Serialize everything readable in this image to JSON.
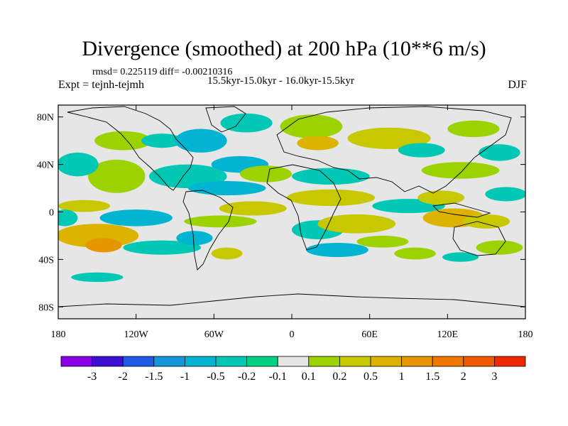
{
  "title": "Divergence (smoothed) at 200 hPa (10**6 m/s)",
  "stats": "rmsd= 0.225119 diff= -0.00210316",
  "experiment": "Expt = tejnh-tejmh",
  "period": "15.5kyr-15.0kyr - 16.0kyr-15.5kyr",
  "season": "DJF",
  "chart_data": {
    "type": "heatmap",
    "title": "Divergence (smoothed) at 200 hPa (10**6 m/s)",
    "xlabel": "",
    "ylabel": "",
    "xlim": [
      -180,
      180
    ],
    "ylim": [
      -90,
      90
    ],
    "x_ticks": [
      {
        "value": -180,
        "label": "180"
      },
      {
        "value": -120,
        "label": "120W"
      },
      {
        "value": -60,
        "label": "60W"
      },
      {
        "value": 0,
        "label": "0"
      },
      {
        "value": 60,
        "label": "60E"
      },
      {
        "value": 120,
        "label": "120E"
      },
      {
        "value": 180,
        "label": "180"
      }
    ],
    "y_ticks": [
      {
        "value": 80,
        "label": "80N"
      },
      {
        "value": 40,
        "label": "40N"
      },
      {
        "value": 0,
        "label": "0"
      },
      {
        "value": -40,
        "label": "40S"
      },
      {
        "value": -80,
        "label": "80S"
      }
    ],
    "colorbar": {
      "levels": [
        -3,
        -2,
        -1.5,
        -1,
        -0.5,
        -0.2,
        -0.1,
        0.1,
        0.2,
        0.5,
        1,
        1.5,
        2,
        3
      ],
      "labels": [
        "-3",
        "-2",
        "-1.5",
        "-1",
        "-0.5",
        "-0.2",
        "-0.1",
        "0.1",
        "0.2",
        "0.5",
        "1",
        "1.5",
        "2",
        "3"
      ],
      "colors": [
        "#8A00E6",
        "#3C0FD2",
        "#1E5AE6",
        "#1496DC",
        "#00B4D2",
        "#00C8B4",
        "#00D282",
        "#E6E6E6",
        "#9BD200",
        "#C8C800",
        "#DCB400",
        "#E69600",
        "#F07800",
        "#F05A00",
        "#F02800"
      ]
    },
    "blobs": [
      {
        "lon": -150,
        "lat": -20,
        "rx": 32,
        "ry": 10,
        "level": "1"
      },
      {
        "lon": -145,
        "lat": -28,
        "rx": 14,
        "ry": 6,
        "level": "1.5"
      },
      {
        "lon": -120,
        "lat": -5,
        "rx": 28,
        "ry": 7,
        "level": "-0.5"
      },
      {
        "lon": -160,
        "lat": 5,
        "rx": 20,
        "ry": 5,
        "level": "0.5"
      },
      {
        "lon": -100,
        "lat": -30,
        "rx": 30,
        "ry": 6,
        "level": "-0.2"
      },
      {
        "lon": -135,
        "lat": 30,
        "rx": 22,
        "ry": 14,
        "level": "0.2"
      },
      {
        "lon": -165,
        "lat": 40,
        "rx": 16,
        "ry": 10,
        "level": "-0.2"
      },
      {
        "lon": -130,
        "lat": 60,
        "rx": 22,
        "ry": 8,
        "level": "0.2"
      },
      {
        "lon": -100,
        "lat": 60,
        "rx": 16,
        "ry": 6,
        "level": "-0.2"
      },
      {
        "lon": -70,
        "lat": 60,
        "rx": 20,
        "ry": 10,
        "level": "-0.5"
      },
      {
        "lon": -35,
        "lat": 75,
        "rx": 20,
        "ry": 8,
        "level": "-0.2"
      },
      {
        "lon": 15,
        "lat": 72,
        "rx": 24,
        "ry": 10,
        "level": "0.2"
      },
      {
        "lon": 20,
        "lat": 58,
        "rx": 16,
        "ry": 6,
        "level": "1"
      },
      {
        "lon": 75,
        "lat": 62,
        "rx": 32,
        "ry": 9,
        "level": "0.5"
      },
      {
        "lon": 100,
        "lat": 52,
        "rx": 18,
        "ry": 6,
        "level": "-0.2"
      },
      {
        "lon": 140,
        "lat": 70,
        "rx": 20,
        "ry": 7,
        "level": "0.2"
      },
      {
        "lon": 160,
        "lat": 50,
        "rx": 16,
        "ry": 7,
        "level": "-0.2"
      },
      {
        "lon": 130,
        "lat": 35,
        "rx": 30,
        "ry": 7,
        "level": "0.2"
      },
      {
        "lon": -80,
        "lat": 30,
        "rx": 30,
        "ry": 10,
        "level": "-0.2"
      },
      {
        "lon": -40,
        "lat": 40,
        "rx": 22,
        "ry": 7,
        "level": "-0.5"
      },
      {
        "lon": -20,
        "lat": 32,
        "rx": 20,
        "ry": 7,
        "level": "0.2"
      },
      {
        "lon": 30,
        "lat": 30,
        "rx": 30,
        "ry": 7,
        "level": "-0.2"
      },
      {
        "lon": 30,
        "lat": 12,
        "rx": 34,
        "ry": 7,
        "level": "0.5"
      },
      {
        "lon": -50,
        "lat": 20,
        "rx": 30,
        "ry": 6,
        "level": "-0.5"
      },
      {
        "lon": -30,
        "lat": 3,
        "rx": 26,
        "ry": 6,
        "level": "0.5"
      },
      {
        "lon": -55,
        "lat": -8,
        "rx": 28,
        "ry": 5,
        "level": "0.2"
      },
      {
        "lon": -75,
        "lat": -22,
        "rx": 14,
        "ry": 6,
        "level": "-0.5"
      },
      {
        "lon": 20,
        "lat": -15,
        "rx": 20,
        "ry": 8,
        "level": "-0.2"
      },
      {
        "lon": 50,
        "lat": -10,
        "rx": 30,
        "ry": 8,
        "level": "0.5"
      },
      {
        "lon": 35,
        "lat": -32,
        "rx": 24,
        "ry": 6,
        "level": "-0.5"
      },
      {
        "lon": 70,
        "lat": -25,
        "rx": 20,
        "ry": 5,
        "level": "0.2"
      },
      {
        "lon": 90,
        "lat": 5,
        "rx": 28,
        "ry": 6,
        "level": "-0.2"
      },
      {
        "lon": 115,
        "lat": 12,
        "rx": 18,
        "ry": 6,
        "level": "0.5"
      },
      {
        "lon": 125,
        "lat": -5,
        "rx": 24,
        "ry": 8,
        "level": "1"
      },
      {
        "lon": 150,
        "lat": -8,
        "rx": 18,
        "ry": 6,
        "level": "0.5"
      },
      {
        "lon": 165,
        "lat": 15,
        "rx": 16,
        "ry": 6,
        "level": "-0.2"
      },
      {
        "lon": 160,
        "lat": -30,
        "rx": 18,
        "ry": 6,
        "level": "0.2"
      },
      {
        "lon": 130,
        "lat": -38,
        "rx": 14,
        "ry": 4,
        "level": "-0.2"
      },
      {
        "lon": 95,
        "lat": -35,
        "rx": 16,
        "ry": 5,
        "level": "0.2"
      },
      {
        "lon": -150,
        "lat": -55,
        "rx": 20,
        "ry": 4,
        "level": "-0.2"
      },
      {
        "lon": -50,
        "lat": -35,
        "rx": 12,
        "ry": 5,
        "level": "0.5"
      },
      {
        "lon": -175,
        "lat": -5,
        "rx": 10,
        "ry": 7,
        "level": "-0.2"
      }
    ]
  }
}
